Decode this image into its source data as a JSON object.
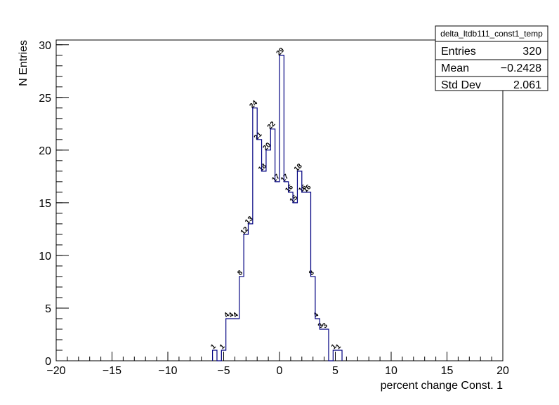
{
  "chart_data": {
    "type": "histogram",
    "bins": [
      -6,
      -5.6,
      -5.2,
      -4.8,
      -4.4,
      -4,
      -3.6,
      -3.2,
      -2.8,
      -2.4,
      -2,
      -1.6,
      -1.2,
      -0.8,
      -0.4,
      0,
      0.4,
      0.8,
      1.2,
      1.6,
      2,
      2.4,
      2.8,
      3.2,
      3.6,
      4,
      4.4,
      4.8,
      5.2,
      5.6
    ],
    "values": [
      1,
      0,
      1,
      4,
      4,
      4,
      8,
      12,
      13,
      24,
      21,
      18,
      20,
      22,
      17,
      29,
      17,
      16,
      15,
      18,
      16,
      16,
      8,
      4,
      3,
      3,
      0,
      1,
      1
    ],
    "color": "#000080",
    "xlabel": "percent change Const. 1",
    "ylabel": "N Entries",
    "xlim": [
      -20,
      20
    ],
    "ylim": [
      0,
      30.45
    ],
    "xticks": [
      {
        "value": -20,
        "label": "−20"
      },
      {
        "value": -15,
        "label": "−15"
      },
      {
        "value": -10,
        "label": "−10"
      },
      {
        "value": -5,
        "label": "−5"
      },
      0,
      5,
      10,
      15,
      20
    ],
    "yticks": [
      0,
      5,
      10,
      15,
      20,
      25,
      30
    ],
    "stats": {
      "title": "delta_ltdb111_const1_temp",
      "rows": [
        {
          "name": "Entries",
          "value": 320
        },
        {
          "name": "Mean",
          "value": {
            "value": -0.2428,
            "label": "−0.2428"
          }
        },
        {
          "name": "Std Dev",
          "value": 2.061
        }
      ]
    }
  }
}
